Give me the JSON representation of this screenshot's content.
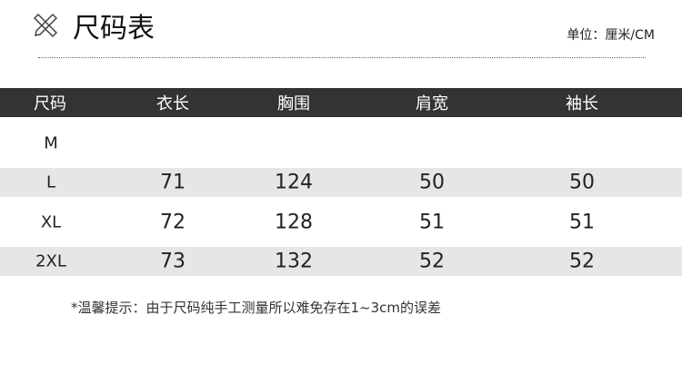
{
  "title": "尺码表",
  "unit": "单位：厘米/CM",
  "headers": [
    "尺码",
    "衣长",
    "胸围",
    "肩宽",
    "袖长"
  ],
  "rows": [
    [
      "M",
      "",
      "",
      "",
      ""
    ],
    [
      "L",
      "71",
      "124",
      "50",
      "50"
    ],
    [
      "XL",
      "72",
      "128",
      "51",
      "51"
    ],
    [
      "2XL",
      "73",
      "132",
      "52",
      "52"
    ]
  ],
  "note": "*温馨提示：由于尺码纯手工测量所以难免存在1~3cm的误差",
  "colors": {
    "header_bg": "#333333",
    "stripe": "#e6e6e6"
  },
  "icon": "ruler-pencil-icon"
}
